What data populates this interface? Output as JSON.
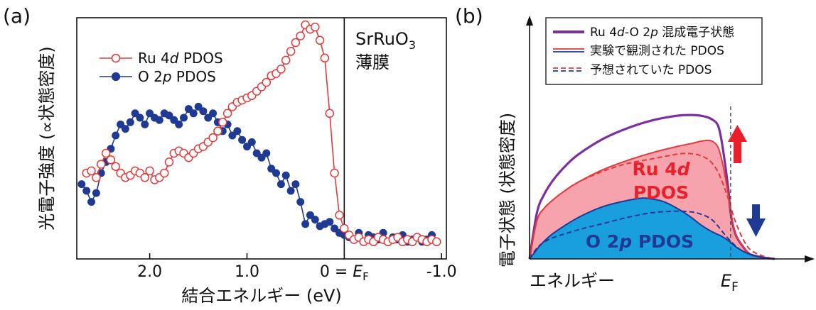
{
  "chart_data": [
    {
      "type": "scatter",
      "panel_label": "(a)",
      "xlabel": "結合エネルギー (eV)",
      "ylabel": "光電子強度 (∝状態密度)",
      "xlim": [
        2.75,
        -1.05
      ],
      "ylim": [
        0,
        1.0
      ],
      "xticks": [
        {
          "value": 2.0,
          "label": "2.0"
        },
        {
          "value": 1.0,
          "label": "1.0"
        },
        {
          "value": 0.0,
          "label": "0 = E",
          "sub": "F"
        },
        {
          "value": -1.0,
          "label": "-1.0"
        }
      ],
      "annotation": {
        "line1": "SrRuO",
        "line1_sub": "3",
        "line2": "薄膜"
      },
      "series": [
        {
          "name": "Ru 4d PDOS",
          "legend_parts": [
            "Ru 4",
            "d",
            " PDOS"
          ],
          "color": "#e23a3a",
          "marker": "open-circle",
          "x": [
            2.65,
            2.6,
            2.55,
            2.5,
            2.45,
            2.4,
            2.35,
            2.3,
            2.25,
            2.2,
            2.15,
            2.1,
            2.05,
            2.0,
            1.95,
            1.9,
            1.85,
            1.8,
            1.75,
            1.7,
            1.65,
            1.6,
            1.55,
            1.5,
            1.45,
            1.4,
            1.35,
            1.3,
            1.25,
            1.2,
            1.15,
            1.1,
            1.05,
            1.0,
            0.95,
            0.9,
            0.85,
            0.8,
            0.75,
            0.7,
            0.65,
            0.6,
            0.55,
            0.5,
            0.45,
            0.4,
            0.35,
            0.3,
            0.25,
            0.2,
            0.15,
            0.1,
            0.05,
            0.0,
            -0.05,
            -0.1,
            -0.15,
            -0.2,
            -0.25,
            -0.3,
            -0.35,
            -0.4,
            -0.45,
            -0.5,
            -0.55,
            -0.6,
            -0.65,
            -0.7,
            -0.75,
            -0.8,
            -0.85,
            -0.9,
            -0.95
          ],
          "values": [
            0.33,
            0.34,
            0.31,
            0.37,
            0.42,
            0.39,
            0.36,
            0.33,
            0.31,
            0.32,
            0.34,
            0.33,
            0.31,
            0.34,
            0.3,
            0.31,
            0.33,
            0.38,
            0.42,
            0.43,
            0.42,
            0.4,
            0.42,
            0.44,
            0.45,
            0.47,
            0.49,
            0.52,
            0.56,
            0.6,
            0.63,
            0.65,
            0.66,
            0.67,
            0.68,
            0.7,
            0.72,
            0.74,
            0.77,
            0.78,
            0.8,
            0.84,
            0.88,
            0.92,
            0.95,
            1.0,
            0.98,
            0.99,
            0.93,
            0.85,
            0.6,
            0.33,
            0.14,
            0.08,
            0.05,
            0.03,
            0.04,
            0.02,
            0.03,
            0.02,
            0.04,
            0.03,
            0.02,
            0.03,
            0.04,
            0.02,
            0.03,
            0.02,
            0.04,
            0.03,
            0.02,
            0.03,
            0.02
          ]
        },
        {
          "name": "O 2p PDOS",
          "legend_parts": [
            "O 2",
            "p",
            " PDOS"
          ],
          "color": "#1f3a93",
          "marker": "filled-circle",
          "x": [
            2.7,
            2.65,
            2.6,
            2.55,
            2.5,
            2.45,
            2.4,
            2.35,
            2.3,
            2.25,
            2.2,
            2.15,
            2.1,
            2.05,
            2.0,
            1.95,
            1.9,
            1.85,
            1.8,
            1.75,
            1.7,
            1.65,
            1.6,
            1.55,
            1.5,
            1.45,
            1.4,
            1.35,
            1.3,
            1.25,
            1.2,
            1.15,
            1.1,
            1.05,
            1.0,
            0.95,
            0.9,
            0.85,
            0.8,
            0.75,
            0.7,
            0.65,
            0.6,
            0.55,
            0.5,
            0.45,
            0.4,
            0.35,
            0.3,
            0.25,
            0.2,
            0.15,
            0.1,
            0.05,
            0.0,
            -0.05,
            -0.1,
            -0.15,
            -0.2,
            -0.25,
            -0.3,
            -0.35,
            -0.4,
            -0.45,
            -0.5,
            -0.55,
            -0.6,
            -0.65,
            -0.7,
            -0.75,
            -0.8,
            -0.85,
            -0.9,
            -0.95
          ],
          "values": [
            0.28,
            0.25,
            0.2,
            0.24,
            0.33,
            0.38,
            0.44,
            0.5,
            0.55,
            0.53,
            0.56,
            0.6,
            0.58,
            0.55,
            0.6,
            0.58,
            0.57,
            0.6,
            0.59,
            0.57,
            0.55,
            0.58,
            0.62,
            0.6,
            0.63,
            0.61,
            0.58,
            0.6,
            0.56,
            0.52,
            0.55,
            0.5,
            0.52,
            0.48,
            0.45,
            0.47,
            0.42,
            0.4,
            0.42,
            0.35,
            0.33,
            0.28,
            0.32,
            0.25,
            0.28,
            0.2,
            0.1,
            0.14,
            0.12,
            0.09,
            0.1,
            0.11,
            0.08,
            0.06,
            0.05,
            0.04,
            0.03,
            0.06,
            0.02,
            0.05,
            0.04,
            0.03,
            0.06,
            0.02,
            0.04,
            0.03,
            0.05,
            0.02,
            0.03,
            0.04,
            0.02,
            0.03,
            0.05,
            0.02
          ]
        }
      ]
    },
    {
      "type": "area",
      "panel_label": "(b)",
      "xlabel": "エネルギー",
      "ylabel": "電子状態 (状態密度)",
      "fermi_label": {
        "main": "E",
        "sub": "F"
      },
      "xlim": [
        0,
        1.0
      ],
      "ylim": [
        0,
        1.0
      ],
      "fermi_x": 0.82,
      "legend": [
        {
          "label_parts": [
            "Ru 4",
            "d",
            "-O 2",
            "p",
            " 混成電子状態"
          ],
          "color": "#7b2fa0",
          "style": "solid-thick"
        },
        {
          "label_parts": [
            "実験で観測された PDOS"
          ],
          "color": "#e23a3a",
          "color2": "#1f3a93",
          "style": "solid"
        },
        {
          "label_parts": [
            "予想されていた PDOS"
          ],
          "color": "#e23a3a",
          "color2": "#1f3a93",
          "style": "dashed"
        }
      ],
      "fill_labels": [
        {
          "line1_parts": [
            "Ru 4",
            "d"
          ],
          "line2": "PDOS",
          "color": "#e8202a"
        },
        {
          "line1_parts": [
            "O 2",
            "p",
            " PDOS"
          ],
          "color": "#1f3a93"
        }
      ],
      "arrows": [
        {
          "direction": "up",
          "color": "#e8202a"
        },
        {
          "direction": "down",
          "color": "#1f3a93"
        }
      ],
      "series": [
        {
          "name": "Ru 4d-O 2p hybridized",
          "color": "#7b2fa0",
          "x": [
            0.0,
            0.03,
            0.06,
            0.1,
            0.15,
            0.2,
            0.3,
            0.4,
            0.5,
            0.6,
            0.66,
            0.7,
            0.74,
            0.77,
            0.79,
            0.81,
            0.82,
            0.84,
            0.87,
            0.9,
            0.95,
            1.0
          ],
          "values": [
            0.0,
            0.3,
            0.42,
            0.52,
            0.61,
            0.68,
            0.78,
            0.85,
            0.9,
            0.93,
            0.935,
            0.93,
            0.91,
            0.86,
            0.7,
            0.46,
            0.3,
            0.16,
            0.08,
            0.03,
            0.01,
            0.0
          ]
        },
        {
          "name": "Ru 4d observed",
          "color": "#e23a3a",
          "fill": "#f7a3ad",
          "x": [
            0.0,
            0.03,
            0.06,
            0.1,
            0.15,
            0.2,
            0.3,
            0.4,
            0.5,
            0.6,
            0.66,
            0.7,
            0.73,
            0.75,
            0.77,
            0.79,
            0.81,
            0.82,
            0.84,
            0.87,
            0.9,
            0.95,
            1.0
          ],
          "values": [
            0.0,
            0.25,
            0.33,
            0.39,
            0.45,
            0.5,
            0.58,
            0.64,
            0.69,
            0.73,
            0.75,
            0.765,
            0.77,
            0.76,
            0.72,
            0.6,
            0.42,
            0.3,
            0.16,
            0.08,
            0.03,
            0.01,
            0.0
          ]
        },
        {
          "name": "O 2p observed",
          "color": "#1f3a93",
          "fill": "#1a9fde",
          "x": [
            0.0,
            0.02,
            0.05,
            0.1,
            0.2,
            0.3,
            0.4,
            0.46,
            0.5,
            0.55,
            0.6,
            0.65,
            0.7,
            0.74,
            0.78,
            0.81,
            0.84,
            0.87,
            0.9,
            0.95,
            1.0
          ],
          "values": [
            0.0,
            0.04,
            0.1,
            0.17,
            0.27,
            0.34,
            0.38,
            0.395,
            0.39,
            0.37,
            0.33,
            0.28,
            0.22,
            0.18,
            0.15,
            0.12,
            0.08,
            0.05,
            0.03,
            0.01,
            0.0
          ]
        },
        {
          "name": "Ru 4d predicted",
          "color": "#e23a3a",
          "dashed": true,
          "x": [
            0.0,
            0.03,
            0.06,
            0.1,
            0.15,
            0.2,
            0.3,
            0.4,
            0.5,
            0.6,
            0.65,
            0.7,
            0.74,
            0.77,
            0.8,
            0.82,
            0.84,
            0.87,
            0.9,
            0.95,
            1.0
          ],
          "values": [
            0.0,
            0.25,
            0.33,
            0.39,
            0.45,
            0.5,
            0.57,
            0.62,
            0.65,
            0.68,
            0.685,
            0.67,
            0.63,
            0.56,
            0.44,
            0.34,
            0.24,
            0.13,
            0.06,
            0.02,
            0.0
          ]
        },
        {
          "name": "O 2p predicted",
          "color": "#1f3a93",
          "dashed": true,
          "x": [
            0.0,
            0.03,
            0.06,
            0.1,
            0.2,
            0.3,
            0.4,
            0.5,
            0.6,
            0.66,
            0.7,
            0.74,
            0.77,
            0.8,
            0.83,
            0.86,
            0.9,
            0.95,
            1.0
          ],
          "values": [
            0.0,
            0.07,
            0.11,
            0.14,
            0.19,
            0.23,
            0.27,
            0.3,
            0.31,
            0.305,
            0.29,
            0.26,
            0.21,
            0.15,
            0.1,
            0.06,
            0.03,
            0.01,
            0.0
          ]
        }
      ]
    }
  ]
}
